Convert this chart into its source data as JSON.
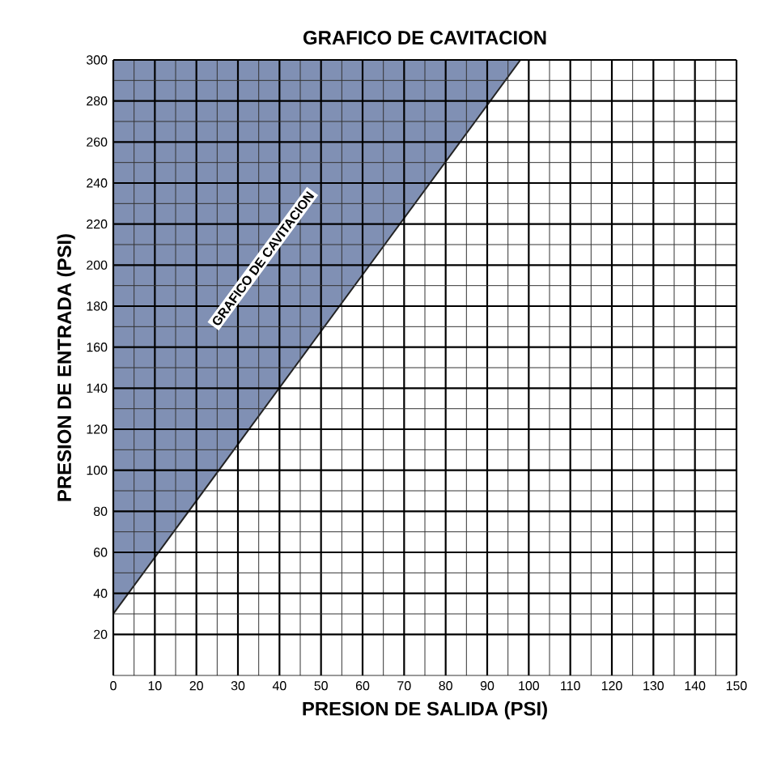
{
  "chart_data": {
    "type": "line",
    "title": "GRAFICO DE CAVITACION",
    "xlabel": "PRESION DE SALIDA (PSI)",
    "ylabel": "PRESION DE ENTRADA (PSI)",
    "x": [
      0,
      98
    ],
    "series": [
      {
        "color": "#222222",
        "values": [
          30,
          300
        ],
        "lower": [
          30,
          300
        ],
        "upper": [
          300,
          300
        ]
      }
    ],
    "annotations": [
      "GRAFICO DE CAVITACION"
    ],
    "xlim": [
      0,
      150
    ],
    "ylim": [
      0,
      300
    ],
    "xticks": [
      0,
      10,
      20,
      30,
      40,
      50,
      60,
      70,
      80,
      90,
      100,
      110,
      120,
      130,
      140,
      150
    ],
    "yticks": [
      20,
      40,
      60,
      80,
      100,
      120,
      140,
      160,
      180,
      200,
      220,
      240,
      260,
      280,
      300
    ],
    "grid": true,
    "marker": "none",
    "line_style": "solid"
  }
}
